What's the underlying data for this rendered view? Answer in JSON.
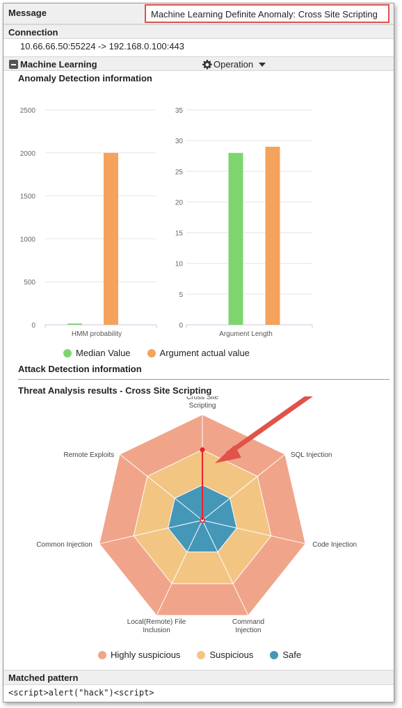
{
  "message": {
    "label": "Message",
    "value": "Machine Learning Definite Anomaly: Cross Site Scripting"
  },
  "connection": {
    "label": "Connection",
    "value": "10.66.66.50:55224 -> 192.168.0.100:443"
  },
  "machine_learning": {
    "title": "Machine Learning",
    "operation_label": "Operation",
    "anomaly_title": "Anomaly Detection information",
    "attack_title": "Attack Detection information",
    "threat_title": "Threat Analysis results - Cross Site Scripting"
  },
  "colors": {
    "median": "#7ed56f",
    "actual": "#f5a25d",
    "highly_suspicious": "#f0a58a",
    "suspicious": "#f2c583",
    "safe": "#4597b8",
    "highlight": "#e8212a",
    "arrow": "#e0534a"
  },
  "chart_data": [
    {
      "type": "bar",
      "categories": [
        "HMM probability"
      ],
      "series": [
        {
          "name": "Median Value",
          "values": [
            15
          ]
        },
        {
          "name": "Argument actual value",
          "values": [
            2000
          ]
        }
      ],
      "yticks": [
        "0",
        "500",
        "1000",
        "1500",
        "2000",
        "2500"
      ],
      "ylim": [
        0,
        2500
      ]
    },
    {
      "type": "bar",
      "categories": [
        "Argument Length"
      ],
      "series": [
        {
          "name": "Median Value",
          "values": [
            28
          ]
        },
        {
          "name": "Argument actual value",
          "values": [
            29
          ]
        }
      ],
      "yticks": [
        "0",
        "5",
        "10",
        "15",
        "20",
        "25",
        "30",
        "35"
      ],
      "ylim": [
        0,
        35
      ]
    },
    {
      "type": "radar",
      "title": "Threat Analysis results - Cross Site Scripting",
      "axes": [
        [
          "Cross Site",
          "Scripting"
        ],
        [
          "SQL Injection"
        ],
        [
          "Code Injection"
        ],
        [
          "Command",
          "Injection"
        ],
        [
          "Local(Remote) File",
          "Inclusion"
        ],
        [
          "Common Injection"
        ],
        [
          "Remote Exploits"
        ]
      ],
      "bands": [
        {
          "name": "Safe",
          "max": 1
        },
        {
          "name": "Suspicious",
          "max": 2
        },
        {
          "name": "Highly suspicious",
          "max": 3
        }
      ],
      "scale_max": 3,
      "series": [
        {
          "name": "Cross Site Scripting",
          "values": [
            2,
            0,
            0,
            0,
            0,
            0,
            0
          ]
        }
      ]
    }
  ],
  "bar_legend": [
    "Median Value",
    "Argument actual value"
  ],
  "radar_legend": [
    "Highly suspicious",
    "Suspicious",
    "Safe"
  ],
  "matched": {
    "label": "Matched pattern",
    "value": "<script>alert(\"hack\")<script>"
  }
}
